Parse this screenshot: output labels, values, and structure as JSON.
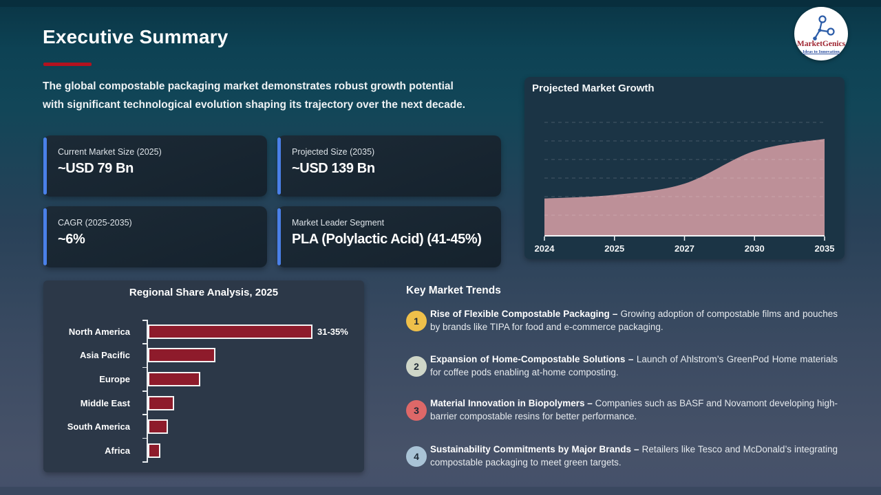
{
  "slide": {
    "title": "Executive Summary",
    "accent_color": "#b4121f",
    "intro_lines": [
      "The global compostable packaging market demonstrates robust growth potential",
      "with significant technological evolution shaping its trajectory over the next decade."
    ]
  },
  "logo": {
    "name": "MarketGenics",
    "tagline": "Ideas to Innovation",
    "icon_color": "#2b5ca8"
  },
  "stat_cards": [
    {
      "label": "Current Market Size (2025)",
      "value": "~USD 79 Bn",
      "accent_color": "#4a80e8"
    },
    {
      "label": "Projected Size (2035)",
      "value": "~USD 139 Bn",
      "accent_color": "#4a80e8"
    },
    {
      "label": "CAGR (2025-2035)",
      "value": "~6%",
      "accent_color": "#4a80e8"
    },
    {
      "label": "Market Leader Segment",
      "value": "PLA (Polylactic Acid) (41-45%)",
      "accent_color": "#4a80e8"
    }
  ],
  "chart_data": [
    {
      "type": "area",
      "title": "Projected Market Growth",
      "x": [
        "2024",
        "2025",
        "2027",
        "2030",
        "2035"
      ],
      "values": [
        75,
        79,
        91,
        126,
        139
      ],
      "unit": "USD Bn",
      "ylim": [
        35,
        145
      ],
      "grid": "dashed-horizontal",
      "legend": "none",
      "area_color": "#bd9098",
      "axis_color": "#f2f4f6"
    },
    {
      "type": "bar",
      "title": "Regional Share Analysis, 2025",
      "orientation": "horizontal",
      "categories": [
        "North America",
        "Asia Pacific",
        "Europe",
        "Middle East",
        "South America",
        "Africa"
      ],
      "values": [
        33,
        13.2,
        10.1,
        4.8,
        3.5,
        2.0
      ],
      "data_labels": [
        "31-35%",
        "",
        "",
        "",
        "",
        ""
      ],
      "unit": "% share",
      "xlim": [
        0,
        36
      ],
      "grid": "off",
      "legend": "none",
      "bar_color": "#8e1b2b"
    }
  ],
  "trends": {
    "title": "Key Market Trends",
    "items": [
      {
        "number": "1",
        "color": "#efc04a",
        "heading": "Rise of Flexible Compostable Packaging –",
        "body": "Growing adoption of compostable films and pouches by brands like TIPA for food and e-commerce packaging."
      },
      {
        "number": "2",
        "color": "#cfd6c8",
        "heading": "Expansion of Home-Compostable Solutions –",
        "body": "Launch of Ahlstrom’s GreenPod Home materials for coffee pods enabling at-home composting."
      },
      {
        "number": "3",
        "color": "#dd6868",
        "heading": "Material Innovation in Biopolymers –",
        "body": "Companies such as BASF and Novamont developing high-barrier compostable resins for better performance."
      },
      {
        "number": "4",
        "color": "#a9c3d6",
        "heading": "Sustainability Commitments by Major Brands –",
        "body": "Retailers like Tesco and McDonald’s integrating compostable packaging to meet green targets."
      }
    ]
  }
}
